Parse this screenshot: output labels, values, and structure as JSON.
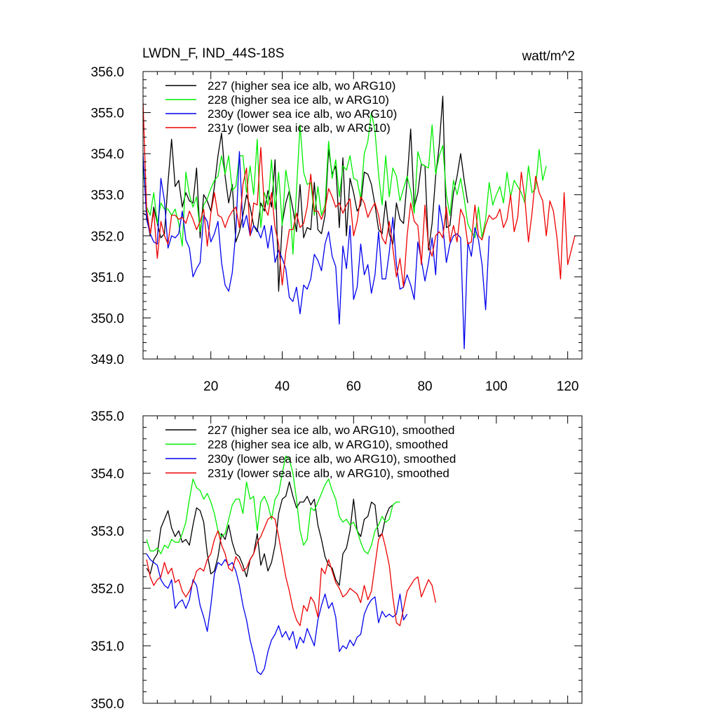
{
  "chart_data": [
    {
      "type": "line",
      "title": "LWDN_F, IND_44S-18S",
      "units": "watt/m^2",
      "xlim": [
        1,
        124
      ],
      "ylim": [
        349.0,
        356.0
      ],
      "x_ticks": [
        20,
        40,
        60,
        80,
        100,
        120
      ],
      "y_ticks": [
        349.0,
        350.0,
        351.0,
        352.0,
        353.0,
        354.0,
        355.0,
        356.0
      ],
      "y_tick_labels": [
        "349.0",
        "350.0",
        "351.0",
        "352.0",
        "353.0",
        "354.0",
        "355.0",
        "356.0"
      ],
      "legend_position": "top-left",
      "series": [
        {
          "name": "227 (higher sea ice alb, wo ARG10)",
          "color": "#000000",
          "x_start": 1,
          "values": [
            352.55,
            352.5,
            352.0,
            352.7,
            352.3,
            351.95,
            352.05,
            353.3,
            354.35,
            353.2,
            353.35,
            352.7,
            353.05,
            352.85,
            352.8,
            353.65,
            351.95,
            353.0,
            352.85,
            352.6,
            353.2,
            353.95,
            354.5,
            353.45,
            352.8,
            353.25,
            351.85,
            352.1,
            352.5,
            353.0,
            352.7,
            352.25,
            352.1,
            352.8,
            352.6,
            353.1,
            352.7,
            353.85,
            350.65,
            352.3,
            352.8,
            353.1,
            352.65,
            352.1,
            353.25,
            351.95,
            352.2,
            352.15,
            353.3,
            352.15,
            352.05,
            352.5,
            354.1,
            353.5,
            353.7,
            352.2,
            353.9,
            352.0,
            353.4,
            353.05,
            352.6,
            352.75,
            353.55,
            353.5,
            353.25,
            352.75,
            352.15,
            352.05,
            352.85,
            352.05,
            351.8,
            352.8,
            352.4,
            352.3,
            353.35,
            354.6,
            352.7,
            353.05,
            353.75,
            353.7,
            351.65,
            352.3,
            353.45,
            354.2,
            355.4,
            352.2,
            352.25,
            353.05,
            353.45,
            354.0,
            353.35,
            352.8
          ]
        },
        {
          "name": "228 (higher sea ice alb, w ARG10)",
          "color": "#00ee00",
          "x_start": 1,
          "values": [
            353.7,
            352.7,
            352.5,
            353.05,
            352.3,
            352.8,
            352.65,
            352.65,
            352.5,
            352.65,
            352.3,
            351.75,
            353.55,
            353.0,
            352.7,
            352.95,
            352.1,
            352.75,
            352.9,
            353.15,
            353.35,
            353.45,
            353.95,
            353.5,
            353.95,
            353.1,
            353.2,
            353.95,
            353.95,
            353.05,
            353.7,
            353.0,
            354.35,
            352.2,
            353.05,
            352.75,
            353.85,
            352.65,
            353.55,
            352.25,
            353.6,
            353.1,
            351.55,
            353.1,
            354.7,
            353.55,
            353.25,
            353.3,
            352.5,
            353.2,
            352.5,
            352.75,
            354.3,
            353.4,
            353.85,
            352.95,
            353.7,
            353.6,
            353.95,
            353.4,
            353.35,
            352.9,
            354.0,
            354.3,
            355.0,
            354.55,
            353.5,
            352.75,
            353.95,
            352.95,
            353.65,
            353.45,
            352.85,
            353.15,
            353.45,
            353.1,
            352.55,
            354.05,
            353.75,
            353.7,
            353.65,
            354.7,
            353.5,
            353.95,
            354.2,
            353.0,
            352.5,
            353.35,
            353.0,
            353.4,
            352.9,
            352.3,
            352.1,
            351.95,
            352.7,
            351.95,
            352.4,
            353.3,
            352.75,
            353.0,
            353.2,
            352.8,
            353.55,
            352.95,
            353.35,
            353.2,
            353.05,
            352.8,
            353.7,
            353.05,
            353.15,
            354.1,
            353.35,
            353.7
          ]
        },
        {
          "name": "230y (lower sea ice alb, wo ARG10)",
          "color": "#0000ee",
          "x_start": 1,
          "values": [
            354.0,
            352.4,
            352.05,
            351.85,
            351.8,
            353.4,
            352.85,
            351.7,
            352.0,
            351.95,
            352.05,
            352.6,
            351.9,
            351.7,
            351.0,
            351.2,
            351.35,
            352.5,
            352.35,
            351.85,
            352.05,
            352.35,
            351.35,
            350.8,
            350.65,
            351.1,
            352.1,
            354.05,
            352.2,
            352.5,
            352.0,
            352.25,
            352.15,
            351.95,
            352.25,
            351.7,
            352.25,
            351.35,
            351.65,
            351.45,
            351.2,
            350.5,
            350.4,
            350.75,
            350.1,
            350.8,
            350.7,
            350.95,
            351.55,
            351.4,
            351.15,
            351.8,
            352.1,
            351.5,
            351.25,
            349.85,
            351.75,
            351.2,
            352.25,
            350.45,
            350.75,
            351.8,
            351.05,
            351.3,
            350.6,
            351.05,
            352.1,
            350.95,
            350.95,
            351.6,
            352.45,
            351.3,
            350.7,
            350.75,
            351.05,
            350.8,
            350.45,
            351.85,
            351.4,
            350.9,
            351.35,
            351.95,
            351.05,
            352.75,
            352.25,
            351.35,
            351.8,
            352.0,
            352.05,
            351.95,
            349.25,
            351.85,
            351.5,
            352.2,
            351.9,
            351.3,
            350.2,
            352.0
          ]
        },
        {
          "name": "231y (lower sea ice alb, w ARG10)",
          "color": "#ee0000",
          "x_start": 1,
          "values": [
            355.25,
            352.65,
            352.05,
            352.6,
            351.45,
            352.35,
            352.0,
            351.8,
            352.5,
            352.5,
            352.4,
            352.45,
            352.3,
            352.6,
            352.4,
            352.15,
            352.35,
            352.65,
            351.75,
            352.55,
            353.05,
            352.5,
            352.45,
            352.2,
            352.45,
            352.6,
            352.7,
            352.2,
            353.25,
            353.65,
            352.0,
            352.8,
            352.75,
            354.15,
            352.7,
            352.5,
            353.05,
            352.2,
            351.8,
            350.8,
            351.6,
            352.15,
            352.15,
            352.55,
            352.2,
            352.3,
            352.7,
            353.5,
            352.6,
            352.6,
            352.4,
            352.65,
            353.15,
            352.95,
            352.7,
            352.8,
            352.55,
            352.75,
            352.9,
            352.0,
            352.35,
            352.95,
            352.8,
            352.45,
            352.65,
            352.8,
            352.5,
            351.95,
            351.8,
            352.35,
            351.7,
            351.0,
            351.45,
            350.75,
            352.0,
            352.8,
            352.35,
            352.25,
            351.3,
            352.75,
            351.75,
            351.5,
            352.0,
            352.1,
            351.95,
            352.7,
            351.85,
            352.25,
            351.85,
            352.65,
            352.45,
            351.8,
            351.85,
            352.75,
            352.0,
            351.9,
            352.25,
            352.5,
            352.4,
            352.45,
            352.65,
            352.2,
            352.4,
            353.0,
            352.1,
            352.45,
            353.55,
            352.9,
            351.85,
            352.55,
            353.45,
            353.05,
            352.85,
            352.0,
            352.85,
            352.6,
            351.95,
            350.95,
            353.05,
            351.3,
            351.65,
            352.0
          ]
        }
      ]
    },
    {
      "type": "line",
      "xlim": [
        1,
        124
      ],
      "ylim": [
        350.0,
        355.0
      ],
      "x_ticks": [
        20,
        40,
        60,
        80,
        100,
        120
      ],
      "y_ticks": [
        350.0,
        351.0,
        352.0,
        353.0,
        354.0,
        355.0
      ],
      "y_tick_labels": [
        "350.0",
        "351.0",
        "352.0",
        "353.0",
        "354.0",
        "355.0"
      ],
      "legend_position": "top-left",
      "series": [
        {
          "name": "227 (higher sea ice alb, wo ARG10), smoothed",
          "color": "#000000",
          "x_start": 2,
          "values": [
            352.35,
            352.25,
            352.5,
            352.6,
            353.05,
            353.2,
            353.35,
            353.05,
            352.9,
            353.0,
            352.8,
            352.85,
            352.75,
            353.1,
            353.4,
            353.35,
            353.15,
            352.6,
            352.25,
            352.3,
            352.55,
            352.95,
            352.85,
            353.1,
            352.8,
            352.6,
            352.55,
            352.4,
            352.2,
            352.5,
            352.6,
            352.95,
            352.4,
            352.6,
            352.3,
            352.45,
            352.75,
            353.3,
            353.55,
            353.6,
            353.85,
            353.6,
            353.4,
            353.5,
            353.5,
            353.6,
            353.45,
            353.55,
            353.1,
            352.85,
            352.55,
            352.4,
            352.35,
            352.15,
            352.05,
            352.6,
            352.7,
            353.0,
            353.55,
            353.0,
            352.9,
            353.2,
            353.25,
            353.5,
            353.45,
            352.9,
            352.95,
            353.25,
            353.4,
            353.45
          ]
        },
        {
          "name": "228 (higher sea ice alb, w ARG10), smoothed",
          "color": "#00ee00",
          "x_start": 2,
          "values": [
            352.85,
            352.65,
            352.65,
            352.7,
            352.6,
            352.75,
            352.7,
            352.85,
            352.8,
            352.8,
            352.95,
            353.15,
            353.55,
            353.9,
            353.75,
            353.7,
            353.55,
            353.65,
            353.5,
            353.3,
            353.0,
            352.9,
            352.95,
            353.2,
            353.45,
            353.55,
            353.55,
            353.3,
            353.85,
            353.55,
            353.6,
            353.0,
            353.5,
            353.6,
            353.45,
            353.2,
            353.55,
            353.65,
            354.0,
            354.3,
            354.25,
            354.0,
            353.55,
            353.0,
            352.75,
            352.85,
            353.4,
            353.35,
            353.5,
            353.65,
            353.8,
            353.9,
            353.7,
            353.55,
            353.25,
            353.15,
            353.2,
            353.1,
            353.15,
            353.0,
            352.8,
            352.65,
            352.6,
            352.75,
            353.0,
            353.1,
            353.25,
            353.15,
            353.2,
            353.45,
            353.5,
            353.5
          ]
        },
        {
          "name": "230y (lower sea ice alb, wo ARG10), smoothed",
          "color": "#0000ee",
          "x_start": 2,
          "values": [
            352.6,
            352.5,
            352.45,
            352.4,
            352.15,
            352.05,
            352.0,
            352.15,
            351.65,
            351.75,
            351.8,
            351.65,
            351.8,
            352.15,
            352.05,
            351.7,
            351.5,
            351.25,
            351.7,
            352.25,
            352.45,
            352.4,
            352.5,
            352.4,
            352.45,
            352.3,
            352.05,
            351.7,
            351.45,
            351.1,
            350.85,
            350.55,
            350.5,
            350.6,
            350.9,
            351.1,
            351.2,
            351.35,
            351.15,
            351.25,
            351.1,
            351.25,
            350.95,
            351.15,
            351.05,
            351.3,
            351.15,
            351.0,
            351.45,
            351.7,
            351.9,
            351.65,
            351.75,
            351.5,
            350.9,
            351.0,
            350.95,
            351.1,
            351.0,
            351.15,
            351.2,
            351.55,
            351.7,
            351.8,
            351.85,
            351.4,
            351.6,
            351.5,
            351.55,
            351.5,
            351.55,
            351.9,
            351.45,
            351.55
          ]
        },
        {
          "name": "231y (lower sea ice alb, w ARG10), smoothed",
          "color": "#ee0000",
          "x_start": 2,
          "values": [
            352.5,
            352.2,
            352.05,
            352.15,
            352.2,
            352.45,
            352.25,
            352.35,
            352.1,
            352.15,
            351.95,
            351.85,
            351.95,
            352.1,
            352.3,
            352.35,
            352.3,
            352.5,
            352.6,
            352.85,
            353.0,
            352.75,
            352.6,
            352.35,
            352.3,
            352.55,
            352.45,
            352.3,
            352.35,
            352.5,
            352.6,
            352.8,
            352.9,
            353.05,
            353.2,
            353.25,
            353.2,
            352.9,
            352.55,
            352.2,
            351.95,
            351.65,
            351.45,
            351.35,
            351.7,
            351.6,
            351.85,
            351.75,
            351.5,
            352.35,
            352.25,
            352.5,
            352.3,
            352.1,
            352.0,
            351.85,
            351.9,
            352.0,
            351.95,
            351.9,
            351.75,
            352.05,
            351.8,
            351.95,
            352.4,
            352.85,
            352.95,
            352.7,
            352.4,
            351.85,
            351.4,
            351.35,
            351.65,
            351.95,
            352.05,
            352.15,
            352.2,
            351.85,
            352.0,
            352.15,
            352.05,
            351.75
          ]
        }
      ]
    }
  ]
}
